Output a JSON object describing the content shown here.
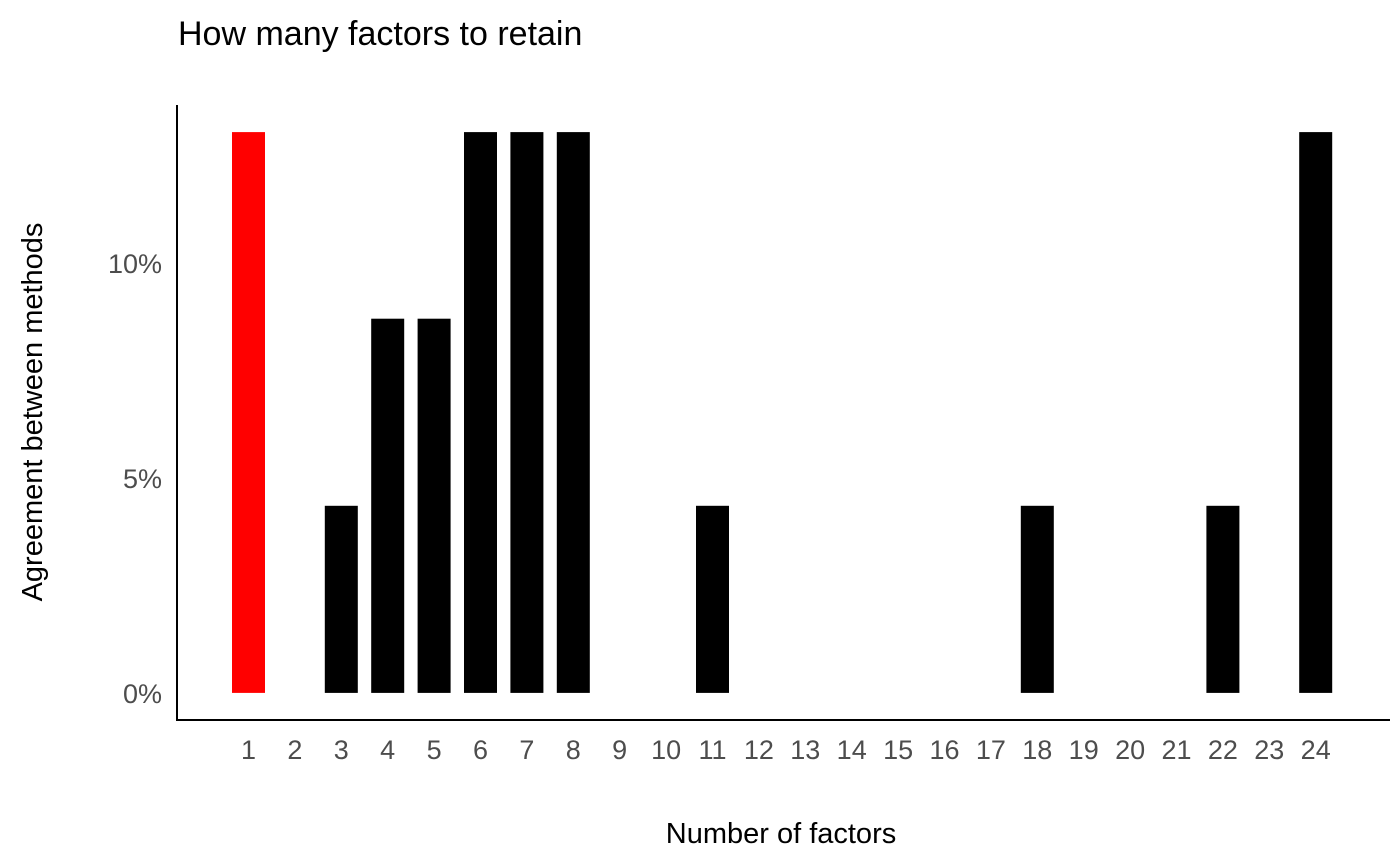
{
  "chart_data": {
    "type": "bar",
    "title": "How many factors to retain",
    "xlabel": "Number of factors",
    "ylabel": "Agreement between methods",
    "categories": [
      "1",
      "2",
      "3",
      "4",
      "5",
      "6",
      "7",
      "8",
      "9",
      "10",
      "11",
      "12",
      "13",
      "14",
      "15",
      "16",
      "17",
      "18",
      "19",
      "20",
      "21",
      "22",
      "23",
      "24"
    ],
    "values": [
      13.04,
      0,
      4.35,
      8.7,
      8.7,
      13.04,
      13.04,
      13.04,
      0,
      0,
      4.35,
      0,
      0,
      0,
      0,
      0,
      0,
      4.35,
      0,
      0,
      0,
      4.35,
      0,
      13.04
    ],
    "highlight_index": 0,
    "ylim": [
      -0.63,
      13.67
    ],
    "yticks": [
      0,
      5,
      10
    ],
    "ytick_labels": [
      "0%",
      "5%",
      "10%"
    ],
    "grid": false,
    "colors": {
      "bar": "#000000",
      "highlight": "#ff0000",
      "axis": "#000000"
    }
  }
}
